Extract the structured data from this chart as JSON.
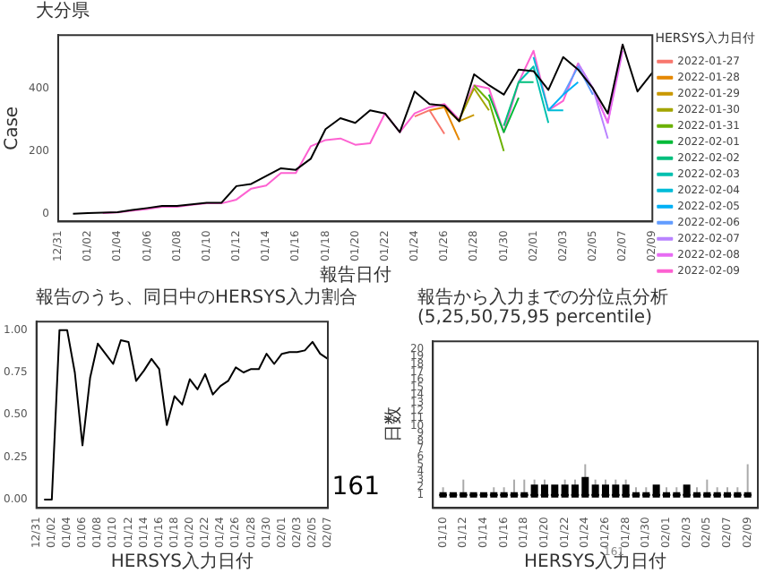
{
  "chart_data": [
    {
      "type": "line",
      "title": "大分県",
      "xlabel": "報告日付",
      "ylabel": "Case",
      "legend_title": "HERSYS入力日付",
      "legend": "right",
      "grid": false,
      "categories": [
        "12/31",
        null,
        "01/02",
        null,
        "01/04",
        null,
        "01/06",
        null,
        "01/08",
        null,
        "01/10",
        null,
        "01/12",
        null,
        "01/14",
        null,
        "01/16",
        null,
        "01/18",
        null,
        "01/20",
        null,
        "01/22",
        null,
        "01/24",
        null,
        "01/26",
        null,
        "01/28",
        null,
        "01/30",
        null,
        "02/01",
        null,
        "02/03",
        null,
        "02/05",
        null,
        "02/07",
        null,
        "02/09"
      ],
      "ylim": [
        -25,
        570
      ],
      "yticks": [
        0,
        200,
        400
      ],
      "series": [
        {
          "color": "#000000",
          "values": [
            null,
            0,
            2,
            3,
            5,
            12,
            18,
            25,
            25,
            30,
            35,
            35,
            88,
            95,
            120,
            145,
            140,
            175,
            270,
            305,
            290,
            330,
            320,
            260,
            390,
            350,
            345,
            295,
            445,
            410,
            380,
            460,
            455,
            395,
            500,
            460,
            400,
            320,
            540,
            390,
            450
          ]
        },
        {
          "name": "2022-01-27",
          "color": "#f8766d",
          "values": [
            null,
            null,
            null,
            null,
            null,
            null,
            null,
            null,
            null,
            null,
            null,
            null,
            null,
            null,
            null,
            null,
            null,
            null,
            null,
            null,
            null,
            null,
            null,
            null,
            310,
            330,
            255,
            null,
            null,
            null,
            null,
            null,
            null,
            null,
            null,
            null,
            null,
            null,
            null,
            null,
            null
          ]
        },
        {
          "name": "2022-01-28",
          "color": "#e58700",
          "values": [
            null,
            null,
            null,
            null,
            null,
            null,
            null,
            null,
            null,
            null,
            null,
            null,
            null,
            null,
            null,
            null,
            null,
            null,
            null,
            null,
            null,
            null,
            null,
            null,
            null,
            330,
            340,
            235,
            null,
            null,
            null,
            null,
            null,
            null,
            null,
            null,
            null,
            null,
            null,
            null,
            null
          ]
        },
        {
          "name": "2022-01-29",
          "color": "#c99800",
          "values": [
            null,
            null,
            null,
            null,
            null,
            null,
            null,
            null,
            null,
            null,
            null,
            null,
            null,
            null,
            null,
            null,
            null,
            null,
            null,
            null,
            null,
            null,
            null,
            null,
            null,
            null,
            340,
            295,
            315,
            null,
            null,
            null,
            null,
            null,
            null,
            null,
            null,
            null,
            null,
            null,
            null
          ]
        },
        {
          "name": "2022-01-30",
          "color": "#a3a500",
          "values": [
            null,
            null,
            null,
            null,
            null,
            null,
            null,
            null,
            null,
            null,
            null,
            null,
            null,
            null,
            null,
            null,
            null,
            null,
            null,
            null,
            null,
            null,
            null,
            null,
            null,
            null,
            null,
            300,
            400,
            330,
            null,
            null,
            null,
            null,
            null,
            null,
            null,
            null,
            null,
            null,
            null
          ]
        },
        {
          "name": "2022-01-31",
          "color": "#6bb100",
          "values": [
            null,
            null,
            null,
            null,
            null,
            null,
            null,
            null,
            null,
            null,
            null,
            null,
            null,
            null,
            null,
            null,
            null,
            null,
            null,
            null,
            null,
            null,
            null,
            null,
            null,
            null,
            null,
            null,
            410,
            360,
            200,
            null,
            null,
            null,
            null,
            null,
            null,
            null,
            null,
            null,
            null
          ]
        },
        {
          "name": "2022-02-01",
          "color": "#00ba38",
          "values": [
            null,
            null,
            null,
            null,
            null,
            null,
            null,
            null,
            null,
            null,
            null,
            null,
            null,
            null,
            null,
            null,
            null,
            null,
            null,
            null,
            null,
            null,
            null,
            null,
            null,
            null,
            null,
            null,
            null,
            380,
            260,
            370,
            null,
            null,
            null,
            null,
            null,
            null,
            null,
            null,
            null
          ]
        },
        {
          "name": "2022-02-02",
          "color": "#00bf7d",
          "values": [
            null,
            null,
            null,
            null,
            null,
            null,
            null,
            null,
            null,
            null,
            null,
            null,
            null,
            null,
            null,
            null,
            null,
            null,
            null,
            null,
            null,
            null,
            null,
            null,
            null,
            null,
            null,
            null,
            null,
            null,
            280,
            420,
            420,
            null,
            null,
            null,
            null,
            null,
            null,
            null,
            null
          ]
        },
        {
          "name": "2022-02-03",
          "color": "#00c0af",
          "values": [
            null,
            null,
            null,
            null,
            null,
            null,
            null,
            null,
            null,
            null,
            null,
            null,
            null,
            null,
            null,
            null,
            null,
            null,
            null,
            null,
            null,
            null,
            null,
            null,
            null,
            null,
            null,
            null,
            null,
            null,
            null,
            420,
            470,
            290,
            null,
            null,
            null,
            null,
            null,
            null,
            null
          ]
        },
        {
          "name": "2022-02-04",
          "color": "#00bcd8",
          "values": [
            null,
            null,
            null,
            null,
            null,
            null,
            null,
            null,
            null,
            null,
            null,
            null,
            null,
            null,
            null,
            null,
            null,
            null,
            null,
            null,
            null,
            null,
            null,
            null,
            null,
            null,
            null,
            null,
            null,
            null,
            null,
            null,
            500,
            330,
            330,
            null,
            null,
            null,
            null,
            null,
            null
          ]
        },
        {
          "name": "2022-02-05",
          "color": "#00b0f6",
          "values": [
            null,
            null,
            null,
            null,
            null,
            null,
            null,
            null,
            null,
            null,
            null,
            null,
            null,
            null,
            null,
            null,
            null,
            null,
            null,
            null,
            null,
            null,
            null,
            null,
            null,
            null,
            null,
            null,
            null,
            null,
            null,
            null,
            null,
            330,
            380,
            420,
            null,
            null,
            null,
            null,
            null
          ]
        },
        {
          "name": "2022-02-06",
          "color": "#619cff",
          "values": [
            null,
            null,
            null,
            null,
            null,
            null,
            null,
            null,
            null,
            null,
            null,
            null,
            null,
            null,
            null,
            null,
            null,
            null,
            null,
            null,
            null,
            null,
            null,
            null,
            null,
            null,
            null,
            null,
            null,
            null,
            null,
            null,
            null,
            null,
            380,
            470,
            380,
            null,
            null,
            null,
            null
          ]
        },
        {
          "name": "2022-02-07",
          "color": "#b983ff",
          "values": [
            null,
            null,
            null,
            null,
            null,
            null,
            null,
            null,
            null,
            null,
            null,
            null,
            null,
            null,
            null,
            null,
            null,
            null,
            null,
            null,
            null,
            null,
            null,
            null,
            null,
            null,
            null,
            null,
            null,
            null,
            null,
            null,
            null,
            null,
            null,
            480,
            400,
            240,
            null,
            null,
            null
          ]
        },
        {
          "name": "2022-02-08",
          "color": "#e76bf3",
          "values": [
            null,
            null,
            null,
            null,
            null,
            null,
            null,
            null,
            null,
            null,
            null,
            null,
            null,
            null,
            null,
            null,
            null,
            null,
            null,
            null,
            null,
            null,
            null,
            null,
            null,
            null,
            null,
            null,
            null,
            null,
            null,
            null,
            null,
            null,
            null,
            null,
            400,
            290,
            520,
            null,
            null
          ]
        },
        {
          "name": "2022-02-09",
          "color": "#fd61d1",
          "values": [
            null,
            null,
            null,
            2,
            4,
            10,
            15,
            22,
            22,
            28,
            33,
            33,
            45,
            80,
            90,
            130,
            130,
            215,
            235,
            240,
            220,
            225,
            320,
            260,
            320,
            340,
            350,
            300,
            410,
            400,
            260,
            420,
            520,
            330,
            360,
            480,
            400,
            290,
            540,
            null,
            null
          ]
        }
      ]
    },
    {
      "type": "line",
      "title": "報告のうち、同日中のHERSYS入力割合",
      "xlabel": "HERSYS入力日付",
      "grid": false,
      "color": "#000000",
      "categories": [
        "12/31",
        null,
        "01/02",
        null,
        "01/04",
        null,
        "01/06",
        null,
        "01/08",
        null,
        "01/10",
        null,
        "01/12",
        null,
        "01/14",
        null,
        "01/16",
        null,
        "01/18",
        null,
        "01/20",
        null,
        "01/22",
        null,
        "01/24",
        null,
        "01/26",
        null,
        "01/28",
        null,
        "01/30",
        null,
        "02/01",
        null,
        "02/03",
        null,
        "02/05",
        null,
        "02/07"
      ],
      "values": [
        null,
        0,
        0,
        1,
        1,
        0.75,
        0.32,
        0.72,
        0.92,
        0.86,
        0.8,
        0.94,
        0.93,
        0.7,
        0.76,
        0.83,
        0.77,
        0.44,
        0.61,
        0.56,
        0.71,
        0.65,
        0.74,
        0.62,
        0.67,
        0.7,
        0.78,
        0.75,
        0.77,
        0.77,
        0.86,
        0.8,
        0.86,
        0.87,
        0.87,
        0.88,
        0.93,
        0.86,
        0.83
      ],
      "ylim": [
        -0.05,
        1.05
      ],
      "yticks": [
        {
          "value": 0,
          "label": "0.00"
        },
        {
          "value": 0.25,
          "label": "0.25"
        },
        {
          "value": 0.5,
          "label": "0.50"
        },
        {
          "value": 0.75,
          "label": "0.75"
        },
        {
          "value": 1,
          "label": "1.00"
        }
      ],
      "annotations": [
        "161"
      ]
    },
    {
      "type": "box",
      "title": "報告から入力までの分位点分析(5,25,50,75,95 percentile)",
      "xlabel": "HERSYS入力日付",
      "ylabel": "日数",
      "grid": false,
      "color": "#000000",
      "categories": [
        "01/10",
        null,
        "01/12",
        null,
        "01/14",
        null,
        "01/16",
        null,
        "01/18",
        null,
        "01/20",
        null,
        "01/22",
        null,
        "01/24",
        null,
        "01/26",
        null,
        "01/28",
        null,
        "01/30",
        null,
        "02/01",
        null,
        "02/03",
        null,
        "02/05",
        null,
        "02/07",
        null,
        "02/09"
      ],
      "ylim": [
        -0.7,
        21
      ],
      "yticks": [
        1,
        2,
        3,
        4,
        5,
        6,
        7,
        8,
        9,
        10,
        11,
        12,
        13,
        14,
        15,
        16,
        17,
        18,
        19,
        20
      ],
      "boxes": [
        {
          "low": 1,
          "q1": 1,
          "median": 1,
          "q3": 1,
          "high": 2
        },
        {
          "low": 1,
          "q1": 1,
          "median": 1,
          "q3": 1,
          "high": 1
        },
        {
          "low": 1,
          "q1": 1,
          "median": 1,
          "q3": 1,
          "high": 3
        },
        {
          "low": 1,
          "q1": 1,
          "median": 1,
          "q3": 1,
          "high": 1
        },
        {
          "low": 1,
          "q1": 1,
          "median": 1,
          "q3": 1,
          "high": 1
        },
        {
          "low": 1,
          "q1": 1,
          "median": 1,
          "q3": 1,
          "high": 2
        },
        {
          "low": 1,
          "q1": 1,
          "median": 1,
          "q3": 1,
          "high": 2
        },
        {
          "low": 1,
          "q1": 1,
          "median": 1,
          "q3": 1,
          "high": 3
        },
        {
          "low": 1,
          "q1": 1,
          "median": 1,
          "q3": 1,
          "high": 3
        },
        {
          "low": 1,
          "q1": 1,
          "median": 1,
          "q3": 2,
          "high": 3
        },
        {
          "low": 1,
          "q1": 1,
          "median": 1,
          "q3": 2,
          "high": 3
        },
        {
          "low": 1,
          "q1": 1,
          "median": 1,
          "q3": 2,
          "high": 2
        },
        {
          "low": 1,
          "q1": 1,
          "median": 1,
          "q3": 2,
          "high": 3
        },
        {
          "low": 1,
          "q1": 1,
          "median": 1,
          "q3": 2,
          "high": 3
        },
        {
          "low": 1,
          "q1": 1,
          "median": 1,
          "q3": 3,
          "high": 5
        },
        {
          "low": 1,
          "q1": 1,
          "median": 1,
          "q3": 2,
          "high": 3
        },
        {
          "low": 1,
          "q1": 1,
          "median": 1,
          "q3": 2,
          "high": 3
        },
        {
          "low": 1,
          "q1": 1,
          "median": 1,
          "q3": 2,
          "high": 3
        },
        {
          "low": 1,
          "q1": 1,
          "median": 1,
          "q3": 2,
          "high": 3
        },
        {
          "low": 1,
          "q1": 1,
          "median": 1,
          "q3": 1,
          "high": 2
        },
        {
          "low": 1,
          "q1": 1,
          "median": 1,
          "q3": 1,
          "high": 2
        },
        {
          "low": 1,
          "q1": 1,
          "median": 1,
          "q3": 2,
          "high": 2
        },
        {
          "low": 1,
          "q1": 1,
          "median": 1,
          "q3": 1,
          "high": 2
        },
        {
          "low": 1,
          "q1": 1,
          "median": 1,
          "q3": 1,
          "high": 2
        },
        {
          "low": 1,
          "q1": 1,
          "median": 1,
          "q3": 2,
          "high": 2
        },
        {
          "low": 1,
          "q1": 1,
          "median": 1,
          "q3": 1,
          "high": 2
        },
        {
          "low": 1,
          "q1": 1,
          "median": 1,
          "q3": 1,
          "high": 3
        },
        {
          "low": 1,
          "q1": 1,
          "median": 1,
          "q3": 1,
          "high": 2
        },
        {
          "low": 1,
          "q1": 1,
          "median": 1,
          "q3": 1,
          "high": 2
        },
        {
          "low": 1,
          "q1": 1,
          "median": 1,
          "q3": 1,
          "high": 2
        },
        {
          "low": 1,
          "q1": 1,
          "median": 1,
          "q3": 1,
          "high": 5
        }
      ],
      "annotations": [
        "161"
      ]
    }
  ]
}
